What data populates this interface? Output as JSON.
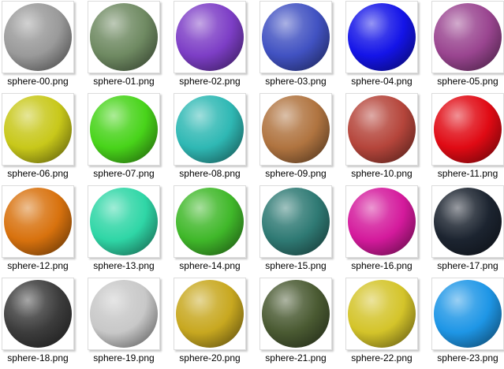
{
  "files": [
    {
      "name": "sphere-00.png",
      "color": "#9a9a9a"
    },
    {
      "name": "sphere-01.png",
      "color": "#6f8a62"
    },
    {
      "name": "sphere-02.png",
      "color": "#7d3ec6"
    },
    {
      "name": "sphere-03.png",
      "color": "#4152c2"
    },
    {
      "name": "sphere-04.png",
      "color": "#1414e8"
    },
    {
      "name": "sphere-05.png",
      "color": "#9a4590"
    },
    {
      "name": "sphere-06.png",
      "color": "#c8c81a"
    },
    {
      "name": "sphere-07.png",
      "color": "#48d41a"
    },
    {
      "name": "sphere-08.png",
      "color": "#2fb8b4"
    },
    {
      "name": "sphere-09.png",
      "color": "#b07440"
    },
    {
      "name": "sphere-10.png",
      "color": "#b5453b"
    },
    {
      "name": "sphere-11.png",
      "color": "#e00a14"
    },
    {
      "name": "sphere-12.png",
      "color": "#d8720e"
    },
    {
      "name": "sphere-13.png",
      "color": "#2fd6a6"
    },
    {
      "name": "sphere-14.png",
      "color": "#40b82a"
    },
    {
      "name": "sphere-15.png",
      "color": "#2f7a74"
    },
    {
      "name": "sphere-16.png",
      "color": "#d41a9c"
    },
    {
      "name": "sphere-17.png",
      "color": "#1c2430"
    },
    {
      "name": "sphere-18.png",
      "color": "#3c3c3c"
    },
    {
      "name": "sphere-19.png",
      "color": "#c8c8c8"
    },
    {
      "name": "sphere-20.png",
      "color": "#c8a820"
    },
    {
      "name": "sphere-21.png",
      "color": "#4a5a32"
    },
    {
      "name": "sphere-22.png",
      "color": "#d4c42a"
    },
    {
      "name": "sphere-23.png",
      "color": "#1e96e6"
    }
  ]
}
